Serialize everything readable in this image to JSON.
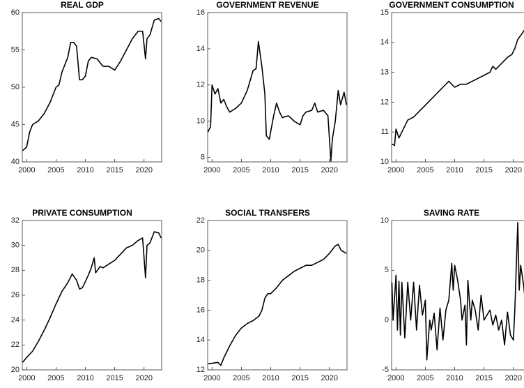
{
  "chart_data": [
    {
      "type": "line",
      "title": "REAL GDP",
      "color": "#000000",
      "x": [
        1999.3,
        2000,
        2000.5,
        2001,
        2002,
        2003,
        2004,
        2005,
        2005.5,
        2006,
        2007,
        2007.5,
        2008,
        2008.5,
        2009,
        2009.5,
        2010,
        2010.5,
        2011,
        2012,
        2013,
        2014,
        2015,
        2016,
        2017,
        2018,
        2019,
        2019.75,
        2020.25,
        2020.5,
        2021,
        2021.75,
        2022.5,
        2022.9
      ],
      "values": [
        41.5,
        42,
        44,
        45,
        45.5,
        46.5,
        48,
        50,
        50.3,
        52,
        54,
        56,
        56,
        55.5,
        51,
        51,
        51.5,
        53.5,
        54,
        53.8,
        52.8,
        52.8,
        52.3,
        53.5,
        55,
        56.5,
        57.5,
        57.5,
        53.8,
        56.5,
        57,
        59,
        59.2,
        58.8
      ],
      "xlim": [
        1999.25,
        2023
      ],
      "ylim": [
        40,
        60
      ],
      "xticks": [
        2000,
        2005,
        2010,
        2015,
        2020
      ],
      "yticks": [
        40,
        45,
        50,
        55,
        60
      ]
    },
    {
      "type": "line",
      "title": "GOVERNMENT   REVENUE",
      "color": "#000000",
      "x": [
        1999.3,
        1999.75,
        2000,
        2000.5,
        2001,
        2001.5,
        2002,
        2002.5,
        2003,
        2004,
        2005,
        2006,
        2007,
        2007.5,
        2007.9,
        2008.5,
        2009,
        2009.25,
        2009.75,
        2010.5,
        2011,
        2011.5,
        2012,
        2013,
        2014,
        2015,
        2015.5,
        2016,
        2017,
        2017.5,
        2018,
        2019,
        2019.75,
        2020.25,
        2020.5,
        2021,
        2021.5,
        2021.9,
        2022.5,
        2022.9
      ],
      "values": [
        9.4,
        9.7,
        12,
        11.5,
        11.8,
        11,
        11.2,
        10.8,
        10.5,
        10.7,
        11,
        11.7,
        12.8,
        12.9,
        14.4,
        13,
        11.5,
        9.2,
        9,
        10.3,
        11,
        10.5,
        10.2,
        10.3,
        10,
        9.8,
        10.3,
        10.5,
        10.6,
        11,
        10.5,
        10.6,
        10.3,
        7.8,
        9,
        10,
        11.7,
        10.9,
        11.6,
        10.9
      ],
      "xlim": [
        1999.25,
        2023
      ],
      "ylim": [
        7.75,
        16
      ],
      "xticks": [
        2000,
        2005,
        2010,
        2015,
        2020
      ],
      "yticks": [
        8,
        10,
        12,
        14,
        16
      ]
    },
    {
      "type": "line",
      "title": "GOVERNMENT CONSUMPTION",
      "color": "#000000",
      "x": [
        1999.3,
        1999.75,
        2000,
        2000.5,
        2001,
        2002,
        2003,
        2004,
        2005,
        2006,
        2007,
        2008,
        2009,
        2010,
        2011,
        2012,
        2013,
        2014,
        2015,
        2016,
        2016.5,
        2017,
        2018,
        2019,
        2019.75,
        2020.25,
        2020.75,
        2021.5,
        2022.5
      ],
      "values": [
        10.6,
        10.55,
        11.1,
        10.8,
        11,
        11.4,
        11.5,
        11.7,
        11.9,
        12.1,
        12.3,
        12.5,
        12.7,
        12.5,
        12.6,
        12.6,
        12.7,
        12.8,
        12.9,
        13,
        13.2,
        13.1,
        13.3,
        13.5,
        13.6,
        13.8,
        14.1,
        14.3,
        14.6
      ],
      "xlim": [
        1999.25,
        2023
      ],
      "ylim": [
        10,
        15
      ],
      "xticks": [
        2000,
        2005,
        2010,
        2015,
        2020
      ],
      "yticks": [
        10,
        11,
        12,
        13,
        14,
        15
      ]
    },
    {
      "type": "line",
      "title": "PRIVATE CONSUMPTION",
      "color": "#000000",
      "x": [
        1999.3,
        2000,
        2001,
        2002,
        2003,
        2004,
        2005,
        2006,
        2007,
        2007.75,
        2008.5,
        2009,
        2009.5,
        2010.5,
        2011,
        2011.5,
        2011.75,
        2012.5,
        2013,
        2014,
        2015,
        2016,
        2017,
        2018,
        2019,
        2019.75,
        2020.25,
        2020.5,
        2021,
        2021.75,
        2022.5,
        2022.9
      ],
      "values": [
        20.6,
        21,
        21.5,
        22.3,
        23.2,
        24.2,
        25.3,
        26.3,
        27,
        27.7,
        27.2,
        26.5,
        26.6,
        27.6,
        28.2,
        29,
        27.8,
        28.3,
        28.2,
        28.5,
        28.8,
        29.3,
        29.8,
        30,
        30.4,
        30.6,
        27.4,
        30,
        30.2,
        31.1,
        31,
        30.6
      ],
      "xlim": [
        1999.25,
        2023
      ],
      "ylim": [
        20,
        32
      ],
      "xticks": [
        2000,
        2005,
        2010,
        2015,
        2020
      ],
      "yticks": [
        20,
        22,
        24,
        26,
        28,
        30,
        32
      ]
    },
    {
      "type": "line",
      "title": "SOCIAL TRANSFERS",
      "color": "#000000",
      "x": [
        1999.3,
        2001,
        2001.5,
        2002,
        2003,
        2004,
        2005,
        2006,
        2007,
        2008,
        2008.5,
        2009,
        2009.5,
        2010,
        2011,
        2012,
        2013,
        2014,
        2015,
        2016,
        2017,
        2018,
        2019,
        2020,
        2021,
        2021.5,
        2022,
        2022.9
      ],
      "values": [
        12.4,
        12.5,
        12.3,
        12.8,
        13.6,
        14.3,
        14.8,
        15.1,
        15.3,
        15.6,
        16,
        16.8,
        17.1,
        17.1,
        17.5,
        18,
        18.3,
        18.6,
        18.8,
        19,
        19,
        19.2,
        19.4,
        19.8,
        20.3,
        20.4,
        20,
        19.8
      ],
      "xlim": [
        1999.25,
        2023
      ],
      "ylim": [
        12,
        22
      ],
      "xticks": [
        2000,
        2005,
        2010,
        2015,
        2020
      ],
      "yticks": [
        12,
        14,
        16,
        18,
        20,
        22
      ]
    },
    {
      "type": "line",
      "title": "SAVING RATE",
      "color": "#000000",
      "x": [
        1999.3,
        1999.5,
        2000,
        2000.25,
        2000.5,
        2000.75,
        2001,
        2001.5,
        2002,
        2002.5,
        2003,
        2003.5,
        2004,
        2004.5,
        2005,
        2005.25,
        2005.75,
        2006,
        2006.5,
        2007,
        2007.5,
        2008,
        2008.5,
        2009,
        2009.5,
        2009.75,
        2010,
        2010.5,
        2011,
        2011.25,
        2011.75,
        2012,
        2012.25,
        2012.75,
        2013,
        2013.5,
        2014,
        2014.5,
        2015,
        2016,
        2016.5,
        2017,
        2017.5,
        2018,
        2018.5,
        2019,
        2019.5,
        2020,
        2020.25,
        2020.75,
        2021,
        2021.25,
        2021.75,
        2022,
        2022.5,
        2022.9
      ],
      "values": [
        3.8,
        0,
        4.5,
        -1,
        3.9,
        -1.5,
        3.8,
        -1.8,
        3.8,
        0,
        3.8,
        -1,
        3.5,
        0.5,
        2,
        -4,
        0,
        -1,
        0.7,
        -3,
        1.2,
        -2,
        1,
        2,
        5.7,
        3,
        5.5,
        4,
        2,
        0,
        1.5,
        -2.5,
        4,
        0,
        2,
        1,
        -1,
        2.5,
        0,
        1,
        -0.5,
        0.5,
        -1,
        0,
        -2.5,
        0.8,
        -1.5,
        -2,
        1,
        9.8,
        3,
        5.5,
        3.5,
        2,
        0.5,
        1
      ],
      "xlim": [
        1999.25,
        2023
      ],
      "ylim": [
        -5,
        10
      ],
      "xticks": [
        2000,
        2005,
        2010,
        2015,
        2020
      ],
      "yticks": [
        -5,
        0,
        5,
        10
      ]
    }
  ]
}
